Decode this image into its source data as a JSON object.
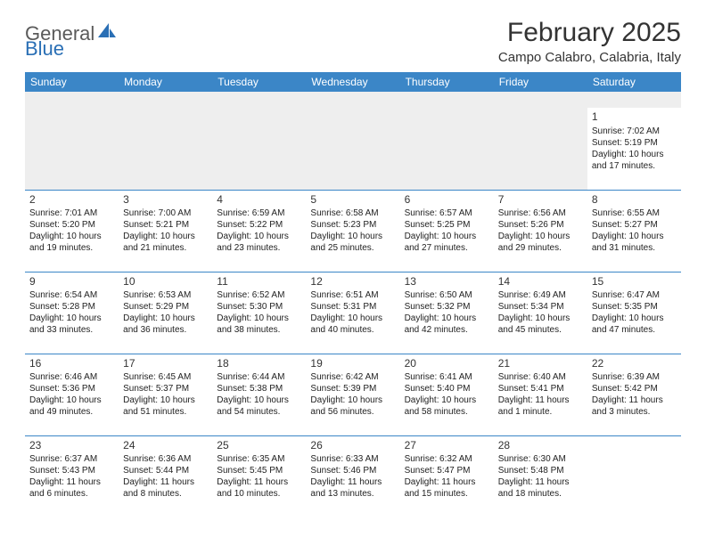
{
  "logo": {
    "text1": "General",
    "text2": "Blue"
  },
  "title": "February 2025",
  "location": "Campo Calabro, Calabria, Italy",
  "colors": {
    "header_bg": "#3b86c7",
    "header_text": "#ffffff",
    "rule": "#3b86c7",
    "spacer_bg": "#eeeeee",
    "logo_gray": "#5a5a5a",
    "logo_blue": "#2a6fb5"
  },
  "weekdays": [
    "Sunday",
    "Monday",
    "Tuesday",
    "Wednesday",
    "Thursday",
    "Friday",
    "Saturday"
  ],
  "weeks": [
    [
      null,
      null,
      null,
      null,
      null,
      null,
      {
        "n": "1",
        "sr": "Sunrise: 7:02 AM",
        "ss": "Sunset: 5:19 PM",
        "d1": "Daylight: 10 hours",
        "d2": "and 17 minutes."
      }
    ],
    [
      {
        "n": "2",
        "sr": "Sunrise: 7:01 AM",
        "ss": "Sunset: 5:20 PM",
        "d1": "Daylight: 10 hours",
        "d2": "and 19 minutes."
      },
      {
        "n": "3",
        "sr": "Sunrise: 7:00 AM",
        "ss": "Sunset: 5:21 PM",
        "d1": "Daylight: 10 hours",
        "d2": "and 21 minutes."
      },
      {
        "n": "4",
        "sr": "Sunrise: 6:59 AM",
        "ss": "Sunset: 5:22 PM",
        "d1": "Daylight: 10 hours",
        "d2": "and 23 minutes."
      },
      {
        "n": "5",
        "sr": "Sunrise: 6:58 AM",
        "ss": "Sunset: 5:23 PM",
        "d1": "Daylight: 10 hours",
        "d2": "and 25 minutes."
      },
      {
        "n": "6",
        "sr": "Sunrise: 6:57 AM",
        "ss": "Sunset: 5:25 PM",
        "d1": "Daylight: 10 hours",
        "d2": "and 27 minutes."
      },
      {
        "n": "7",
        "sr": "Sunrise: 6:56 AM",
        "ss": "Sunset: 5:26 PM",
        "d1": "Daylight: 10 hours",
        "d2": "and 29 minutes."
      },
      {
        "n": "8",
        "sr": "Sunrise: 6:55 AM",
        "ss": "Sunset: 5:27 PM",
        "d1": "Daylight: 10 hours",
        "d2": "and 31 minutes."
      }
    ],
    [
      {
        "n": "9",
        "sr": "Sunrise: 6:54 AM",
        "ss": "Sunset: 5:28 PM",
        "d1": "Daylight: 10 hours",
        "d2": "and 33 minutes."
      },
      {
        "n": "10",
        "sr": "Sunrise: 6:53 AM",
        "ss": "Sunset: 5:29 PM",
        "d1": "Daylight: 10 hours",
        "d2": "and 36 minutes."
      },
      {
        "n": "11",
        "sr": "Sunrise: 6:52 AM",
        "ss": "Sunset: 5:30 PM",
        "d1": "Daylight: 10 hours",
        "d2": "and 38 minutes."
      },
      {
        "n": "12",
        "sr": "Sunrise: 6:51 AM",
        "ss": "Sunset: 5:31 PM",
        "d1": "Daylight: 10 hours",
        "d2": "and 40 minutes."
      },
      {
        "n": "13",
        "sr": "Sunrise: 6:50 AM",
        "ss": "Sunset: 5:32 PM",
        "d1": "Daylight: 10 hours",
        "d2": "and 42 minutes."
      },
      {
        "n": "14",
        "sr": "Sunrise: 6:49 AM",
        "ss": "Sunset: 5:34 PM",
        "d1": "Daylight: 10 hours",
        "d2": "and 45 minutes."
      },
      {
        "n": "15",
        "sr": "Sunrise: 6:47 AM",
        "ss": "Sunset: 5:35 PM",
        "d1": "Daylight: 10 hours",
        "d2": "and 47 minutes."
      }
    ],
    [
      {
        "n": "16",
        "sr": "Sunrise: 6:46 AM",
        "ss": "Sunset: 5:36 PM",
        "d1": "Daylight: 10 hours",
        "d2": "and 49 minutes."
      },
      {
        "n": "17",
        "sr": "Sunrise: 6:45 AM",
        "ss": "Sunset: 5:37 PM",
        "d1": "Daylight: 10 hours",
        "d2": "and 51 minutes."
      },
      {
        "n": "18",
        "sr": "Sunrise: 6:44 AM",
        "ss": "Sunset: 5:38 PM",
        "d1": "Daylight: 10 hours",
        "d2": "and 54 minutes."
      },
      {
        "n": "19",
        "sr": "Sunrise: 6:42 AM",
        "ss": "Sunset: 5:39 PM",
        "d1": "Daylight: 10 hours",
        "d2": "and 56 minutes."
      },
      {
        "n": "20",
        "sr": "Sunrise: 6:41 AM",
        "ss": "Sunset: 5:40 PM",
        "d1": "Daylight: 10 hours",
        "d2": "and 58 minutes."
      },
      {
        "n": "21",
        "sr": "Sunrise: 6:40 AM",
        "ss": "Sunset: 5:41 PM",
        "d1": "Daylight: 11 hours",
        "d2": "and 1 minute."
      },
      {
        "n": "22",
        "sr": "Sunrise: 6:39 AM",
        "ss": "Sunset: 5:42 PM",
        "d1": "Daylight: 11 hours",
        "d2": "and 3 minutes."
      }
    ],
    [
      {
        "n": "23",
        "sr": "Sunrise: 6:37 AM",
        "ss": "Sunset: 5:43 PM",
        "d1": "Daylight: 11 hours",
        "d2": "and 6 minutes."
      },
      {
        "n": "24",
        "sr": "Sunrise: 6:36 AM",
        "ss": "Sunset: 5:44 PM",
        "d1": "Daylight: 11 hours",
        "d2": "and 8 minutes."
      },
      {
        "n": "25",
        "sr": "Sunrise: 6:35 AM",
        "ss": "Sunset: 5:45 PM",
        "d1": "Daylight: 11 hours",
        "d2": "and 10 minutes."
      },
      {
        "n": "26",
        "sr": "Sunrise: 6:33 AM",
        "ss": "Sunset: 5:46 PM",
        "d1": "Daylight: 11 hours",
        "d2": "and 13 minutes."
      },
      {
        "n": "27",
        "sr": "Sunrise: 6:32 AM",
        "ss": "Sunset: 5:47 PM",
        "d1": "Daylight: 11 hours",
        "d2": "and 15 minutes."
      },
      {
        "n": "28",
        "sr": "Sunrise: 6:30 AM",
        "ss": "Sunset: 5:48 PM",
        "d1": "Daylight: 11 hours",
        "d2": "and 18 minutes."
      },
      null
    ]
  ]
}
